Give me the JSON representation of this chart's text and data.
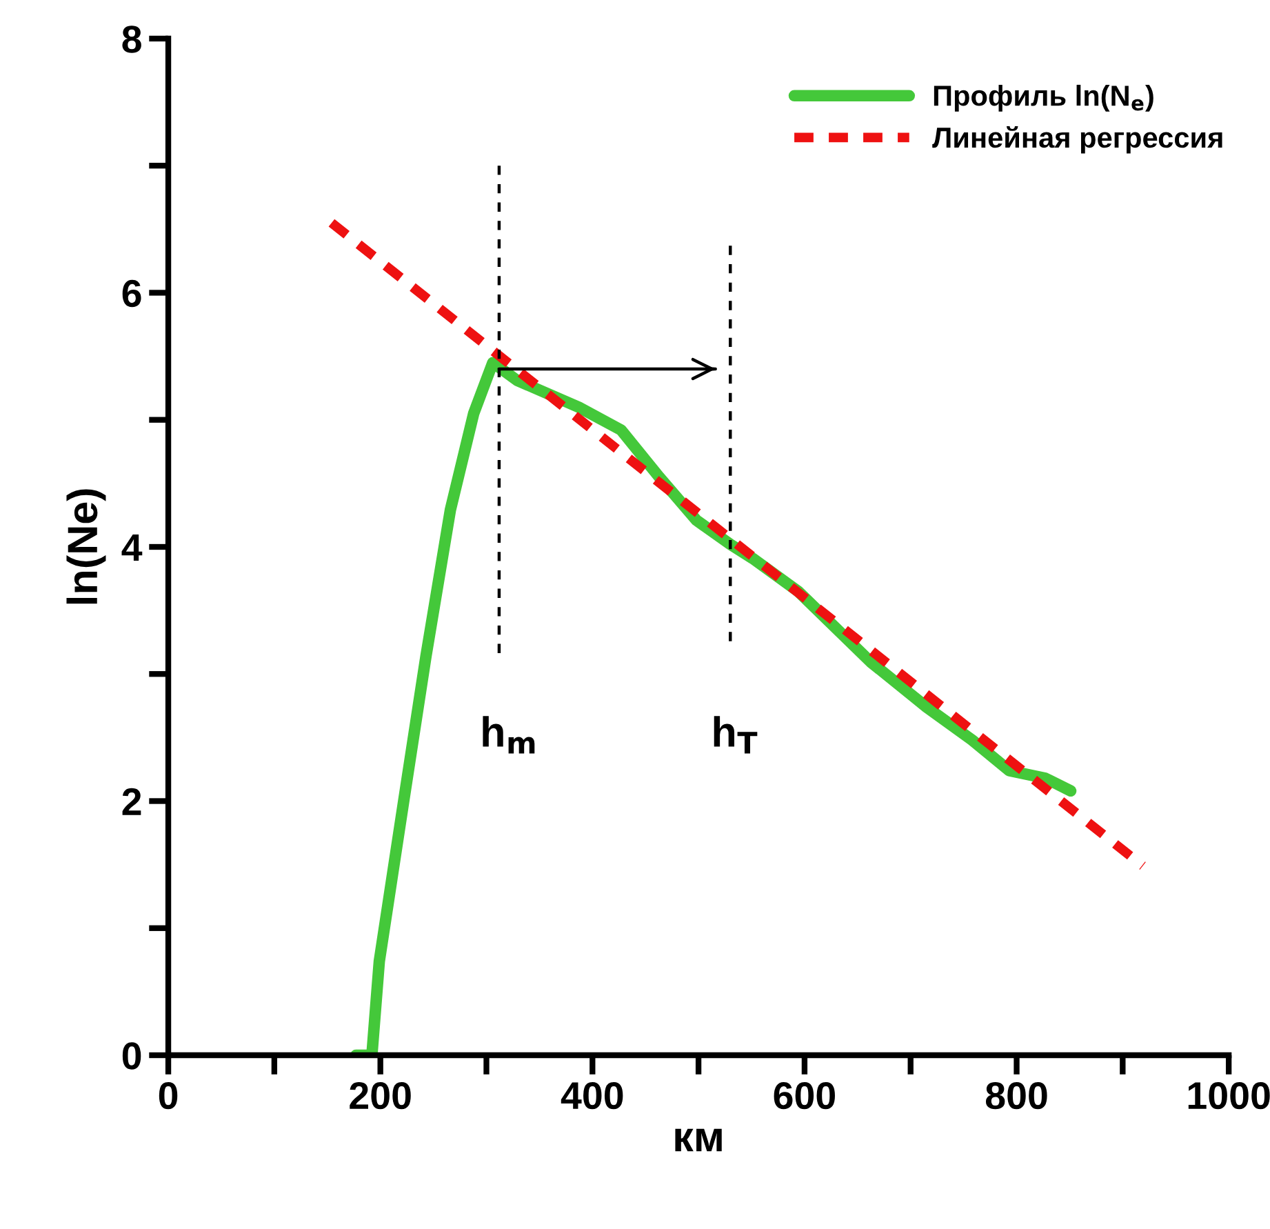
{
  "chart_data": {
    "type": "line",
    "xlabel": "км",
    "ylabel": "ln(Ne)",
    "xlim": [
      0,
      1000
    ],
    "ylim": [
      0,
      8
    ],
    "xticks": [
      0,
      {
        "value": 100,
        "label": null
      },
      200,
      {
        "value": 300,
        "label": null
      },
      400,
      {
        "value": 500,
        "label": null
      },
      600,
      {
        "value": 700,
        "label": null
      },
      800,
      {
        "value": 900,
        "label": null
      },
      1000
    ],
    "yticks": [
      0,
      {
        "value": 1,
        "label": null
      },
      2,
      {
        "value": 3,
        "label": null
      },
      4,
      {
        "value": 5,
        "label": null
      },
      6,
      {
        "value": 7,
        "label": null
      },
      8
    ],
    "grid": false,
    "legend": "top right",
    "series": [
      {
        "name": "Профиль ln(N$_{e}$)",
        "color": "#44c83a",
        "line_style": "solid",
        "x": [
          177,
          192,
          199,
          222,
          243,
          266,
          288,
          306,
          329,
          387,
          427,
          463,
          498,
          530,
          551,
          594,
          663,
          715,
          758,
          793,
          827,
          851
        ],
        "values": [
          0,
          0,
          0.74,
          2.0,
          3.14,
          4.29,
          5.05,
          5.45,
          5.31,
          5.1,
          4.92,
          4.55,
          4.21,
          4.02,
          3.91,
          3.65,
          3.09,
          2.74,
          2.48,
          2.24,
          2.18,
          2.08
        ]
      },
      {
        "name": "Линейная регрессия",
        "color": "#ee1111",
        "line_style": "dashed",
        "x": [
          154,
          919
        ],
        "values": [
          6.55,
          1.49
        ]
      },
      {
        "color": "#000000",
        "line_style": "dashed",
        "x": [
          312,
          312
        ],
        "values": [
          7.0,
          3.12
        ]
      },
      {
        "color": "#000000",
        "line_style": "dashed",
        "x": [
          530,
          530
        ],
        "values": [
          6.37,
          3.22
        ]
      },
      {
        "color": "#000000",
        "line_style": "solid",
        "x": [
          312,
          516
        ],
        "values": [
          5.4,
          5.4
        ]
      }
    ],
    "annotations": [
      "h$_{m}$",
      "h$_{T}$"
    ]
  }
}
